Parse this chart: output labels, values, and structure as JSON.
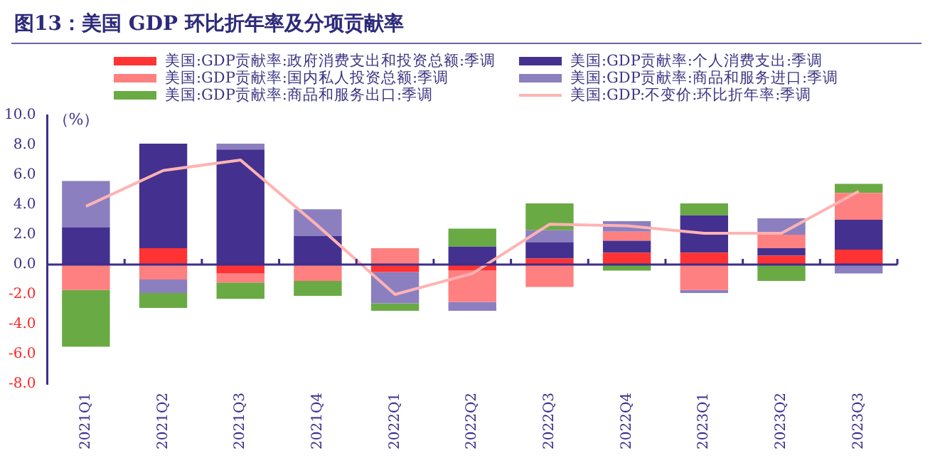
{
  "chart_data": {
    "type": "bar",
    "title": "图13：美国 GDP 环比折年率及分项贡献率",
    "ylabel": "（%）",
    "stacked": true,
    "legend": "top",
    "grid": false,
    "ref_lines": [
      {
        "axis": "y",
        "value": 0,
        "color": "#3c2e8c"
      }
    ],
    "categories": [
      "2021Q1",
      "2021Q2",
      "2021Q3",
      "2021Q4",
      "2022Q1",
      "2022Q2",
      "2022Q3",
      "2022Q4",
      "2023Q1",
      "2023Q2",
      "2023Q3"
    ],
    "ylim": [
      -8,
      10
    ],
    "yticks": [
      {
        "value": -8,
        "label": "-8.0"
      },
      {
        "value": -6,
        "label": "-6.0"
      },
      {
        "value": -4,
        "label": "-4.0"
      },
      {
        "value": -2,
        "label": "-2.0"
      },
      {
        "value": 0,
        "label": "0.0"
      },
      {
        "value": 2,
        "label": "2.0"
      },
      {
        "value": 4,
        "label": "4.0"
      },
      {
        "value": 6,
        "label": "6.0"
      },
      {
        "value": 8,
        "label": "8.0"
      },
      {
        "value": 10,
        "label": "10.0"
      }
    ],
    "series": [
      {
        "name": "美国:GDP贡献率:政府消费支出和投资总额:季调",
        "color": "#ff3333",
        "values": [
          0,
          1.1,
          -0.6,
          0,
          -0.5,
          -0.4,
          0.4,
          0.8,
          0.8,
          0.6,
          1.0
        ]
      },
      {
        "name": "美国:GDP贡献率:个人消费支出:季调",
        "color": "#44318f",
        "values": [
          2.5,
          7.0,
          7.7,
          1.9,
          0,
          1.2,
          1.1,
          0.8,
          2.5,
          0.5,
          2.0
        ]
      },
      {
        "name": "美国:GDP贡献率:国内私人投资总额:季调",
        "color": "#ff8080",
        "values": [
          -1.7,
          -1.0,
          -0.6,
          -1.1,
          1.1,
          -2.1,
          -1.5,
          0.6,
          -1.7,
          0.9,
          1.8
        ]
      },
      {
        "name": "美国:GDP贡献率:商品和服务进口:季调",
        "color": "#8b7fc0",
        "values": [
          3.1,
          -0.9,
          0.4,
          1.8,
          -2.1,
          -0.6,
          0.8,
          0.7,
          -0.2,
          1.1,
          -0.6
        ]
      },
      {
        "name": "美国:GDP贡献率:商品和服务出口:季调",
        "color": "#6aaa44",
        "values": [
          -3.8,
          -1.0,
          -1.1,
          -1.0,
          -0.5,
          1.2,
          1.8,
          -0.4,
          0.8,
          -1.1,
          0.6
        ]
      },
      {
        "name": "美国:GDP:不变价:环比折年率:季调",
        "type": "line",
        "color": "#ffb3b3",
        "marker": "none",
        "values": [
          3.9,
          6.3,
          7.0,
          2.6,
          -2.0,
          -0.6,
          2.7,
          2.6,
          2.1,
          2.1,
          4.9
        ]
      }
    ]
  }
}
